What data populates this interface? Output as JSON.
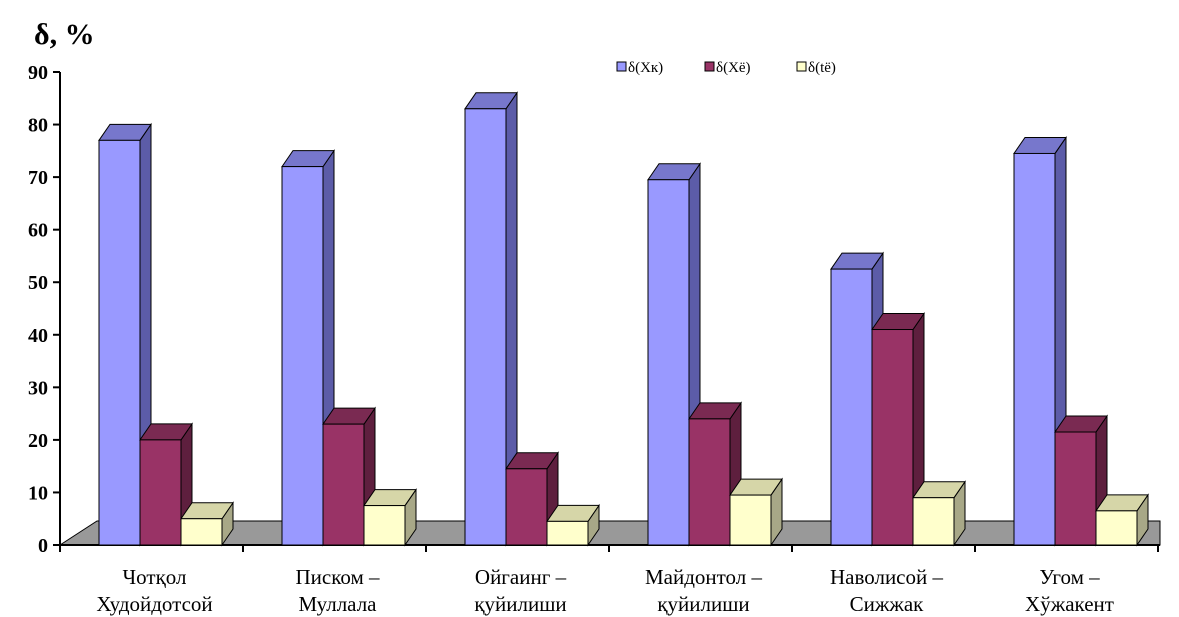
{
  "chart_data": {
    "type": "bar",
    "ylabel": "δ, %",
    "ylim": [
      0,
      90
    ],
    "yticks": [
      0,
      10,
      20,
      30,
      40,
      50,
      60,
      70,
      80,
      90
    ],
    "categories": [
      [
        "Чотқол",
        "Худойдотсой"
      ],
      [
        "Писком –",
        "Муллала"
      ],
      [
        "Ойгаинг –",
        "қуйилиши"
      ],
      [
        "Майдонтол –",
        "қуйилиши"
      ],
      [
        "Наволисой –",
        "Сижжак"
      ],
      [
        "Угом –",
        "Хўжакент"
      ]
    ],
    "series": [
      {
        "name": "δ(Xк)",
        "values": [
          77,
          72,
          83,
          69.5,
          52.5,
          74.5
        ],
        "color_front": "#9999ff",
        "color_side": "#5c5ca8",
        "color_top": "#7777cc"
      },
      {
        "name": "δ(Xё)",
        "values": [
          20,
          23,
          14.5,
          24,
          41,
          21.5
        ],
        "color_front": "#993366",
        "color_side": "#5e1f3e",
        "color_top": "#7a2a52"
      },
      {
        "name": "δ(tё)",
        "values": [
          5,
          7.5,
          4.5,
          9.5,
          9,
          6.5
        ],
        "color_front": "#ffffcc",
        "color_side": "#a8a887",
        "color_top": "#d6d6a8"
      }
    ],
    "grid": false,
    "legend_position": "top-right",
    "floor_color": "#999999"
  }
}
